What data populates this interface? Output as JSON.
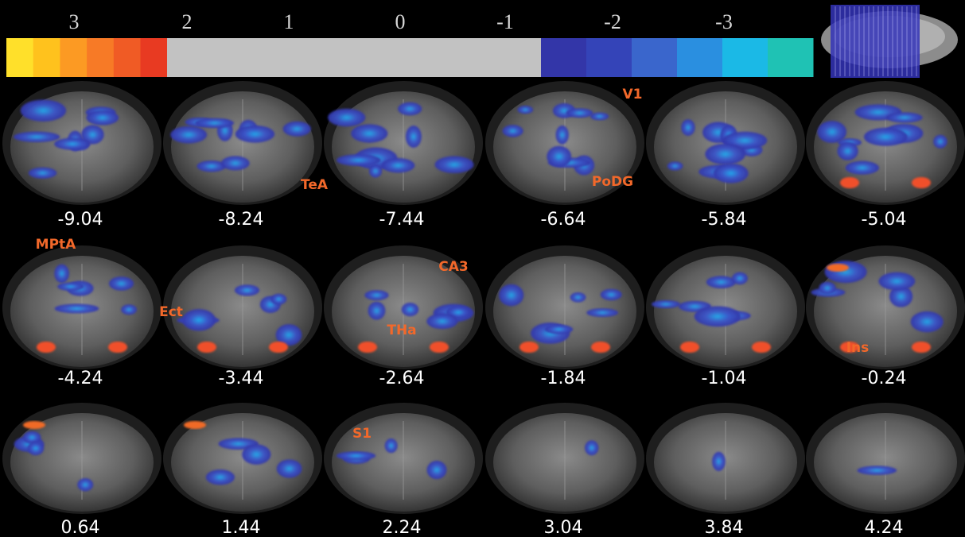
{
  "colorbar": {
    "ticks": [
      "3",
      "2",
      "1",
      "0",
      "-1",
      "-2",
      "-3"
    ]
  },
  "slices": [
    {
      "label": "-9.04",
      "annotations": []
    },
    {
      "label": "-8.24",
      "annotations": [
        "TeA"
      ]
    },
    {
      "label": "-7.44",
      "annotations": []
    },
    {
      "label": "-6.64",
      "annotations": [
        "V1",
        "PoDG"
      ]
    },
    {
      "label": "-5.84",
      "annotations": []
    },
    {
      "label": "-5.04",
      "annotations": []
    },
    {
      "label": "-4.24",
      "annotations": [
        "MPtA"
      ]
    },
    {
      "label": "-3.44",
      "annotations": [
        "Ect"
      ]
    },
    {
      "label": "-2.64",
      "annotations": [
        "CA3",
        "THa"
      ]
    },
    {
      "label": "-1.84",
      "annotations": []
    },
    {
      "label": "-1.04",
      "annotations": []
    },
    {
      "label": "-0.24",
      "annotations": [
        "Ins"
      ]
    },
    {
      "label": "0.64",
      "annotations": []
    },
    {
      "label": "1.44",
      "annotations": []
    },
    {
      "label": "2.24",
      "annotations": [
        "S1"
      ]
    },
    {
      "label": "3.04",
      "annotations": []
    },
    {
      "label": "3.84",
      "annotations": []
    },
    {
      "label": "4.24",
      "annotations": []
    }
  ]
}
